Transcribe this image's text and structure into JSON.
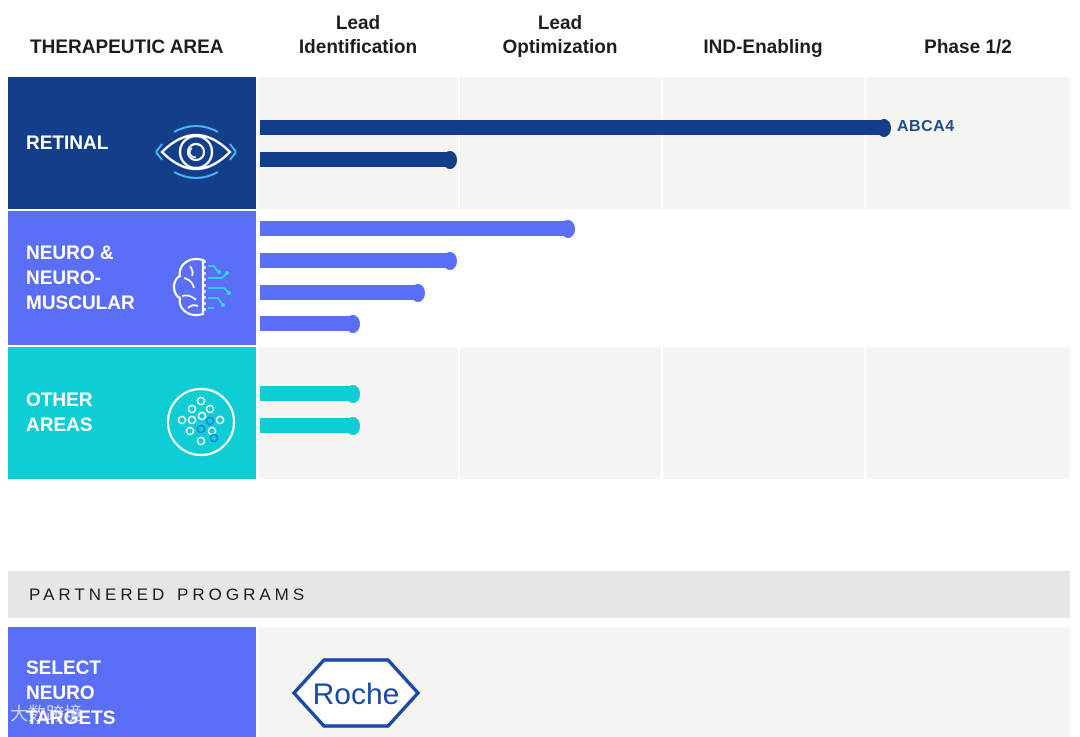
{
  "header": {
    "area_label": "THERAPEUTIC AREA",
    "stages": [
      "Lead\nIdentification",
      "Lead\nOptimization",
      "IND-Enabling",
      "Phase 1/2"
    ]
  },
  "colors": {
    "retinal": "#133f8a",
    "neuro": "#5a6ff5",
    "other": "#0fcdd4",
    "roche_blue": "#1a49a6"
  },
  "areas": [
    {
      "label": "RETINAL",
      "icon": "eye-icon",
      "programs": [
        {
          "progress": 0.77,
          "name": "ABCA4"
        },
        {
          "progress": 0.235
        }
      ]
    },
    {
      "label": "NEURO &\nNEURO-\nMUSCULAR",
      "icon": "brain-icon",
      "programs": [
        {
          "progress": 0.38
        },
        {
          "progress": 0.235
        },
        {
          "progress": 0.195
        },
        {
          "progress": 0.115
        }
      ]
    },
    {
      "label": "OTHER\nAREAS",
      "icon": "cells-icon",
      "programs": [
        {
          "progress": 0.115
        },
        {
          "progress": 0.115
        }
      ]
    }
  ],
  "partnered": {
    "heading": "PARTNERED PROGRAMS",
    "label": "SELECT\nNEURO\nTARGETS",
    "partner": "Roche"
  },
  "watermark": "大数跨境"
}
